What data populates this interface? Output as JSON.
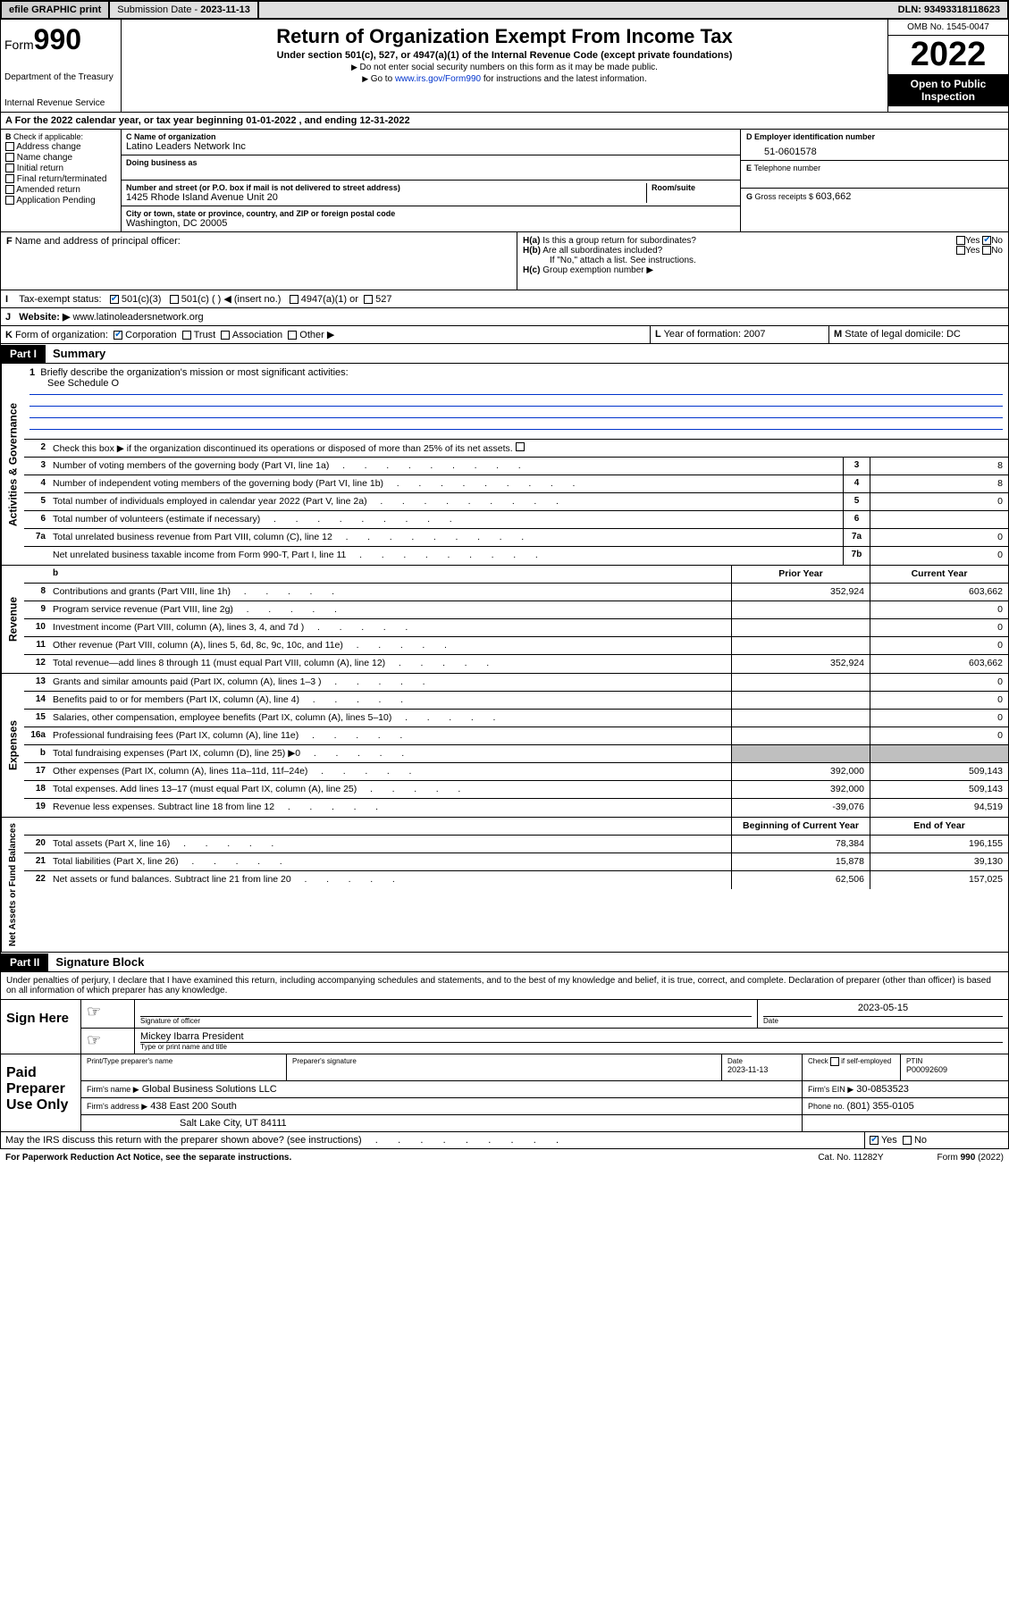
{
  "topbar": {
    "efile": "efile GRAPHIC print",
    "subdate_label": "Submission Date - ",
    "subdate": "2023-11-13",
    "dln_label": "DLN: ",
    "dln": "93493318118623"
  },
  "header": {
    "form_prefix": "Form",
    "form_num": "990",
    "dept": "Department of the Treasury",
    "irs": "Internal Revenue Service",
    "title": "Return of Organization Exempt From Income Tax",
    "sub1": "Under section 501(c), 527, or 4947(a)(1) of the Internal Revenue Code (except private foundations)",
    "sub2": "Do not enter social security numbers on this form as it may be made public.",
    "sub3_pre": "Go to ",
    "sub3_link": "www.irs.gov/Form990",
    "sub3_post": " for instructions and the latest information.",
    "omb": "OMB No. 1545-0047",
    "year": "2022",
    "open": "Open to Public Inspection"
  },
  "periodA": "For the 2022 calendar year, or tax year beginning 01-01-2022   , and ending 12-31-2022",
  "checkB": {
    "label": "Check if applicable:",
    "items": [
      "Address change",
      "Name change",
      "Initial return",
      "Final return/terminated",
      "Amended return",
      "Application Pending"
    ]
  },
  "nameC": {
    "label": "Name of organization",
    "value": "Latino Leaders Network Inc",
    "dba_label": "Doing business as",
    "addr_label": "Number and street (or P.O. box if mail is not delivered to street address)",
    "addr_room": "Room/suite",
    "addr_value": "1425 Rhode Island Avenue Unit 20",
    "city_label": "City or town, state or province, country, and ZIP or foreign postal code",
    "city_value": "Washington, DC  20005"
  },
  "boxD": {
    "label": "Employer identification number",
    "value": "51-0601578"
  },
  "boxE": {
    "label": "Telephone number",
    "value": ""
  },
  "boxG": {
    "label": "Gross receipts $ ",
    "value": "603,662"
  },
  "boxF": "Name and address of principal officer:",
  "boxH": {
    "a": "Is this a group return for subordinates?",
    "b": "Are all subordinates included?",
    "bnote": "If \"No,\" attach a list. See instructions.",
    "c": "Group exemption number ▶"
  },
  "boxI": {
    "label": "Tax-exempt status:",
    "opt1": "501(c)(3)",
    "opt2": "501(c) (  ) ◀ (insert no.)",
    "opt3": "4947(a)(1) or",
    "opt4": "527"
  },
  "boxJ": {
    "label": "Website: ▶",
    "value": "www.latinoleadersnetwork.org"
  },
  "boxK": {
    "label": "Form of organization:",
    "o1": "Corporation",
    "o2": "Trust",
    "o3": "Association",
    "o4": "Other ▶"
  },
  "boxL": {
    "label": "Year of formation: ",
    "value": "2007"
  },
  "boxM": {
    "label": "State of legal domicile: ",
    "value": "DC"
  },
  "part1": {
    "hdr": "Part I",
    "title": "Summary",
    "q1": "Briefly describe the organization's mission or most significant activities:",
    "q1ans": "See Schedule O",
    "q2": "Check this box ▶        if the organization discontinued its operations or disposed of more than 25% of its net assets.",
    "lines_gov": [
      {
        "n": "3",
        "t": "Number of voting members of the governing body (Part VI, line 1a)",
        "b": "3",
        "v": "8"
      },
      {
        "n": "4",
        "t": "Number of independent voting members of the governing body (Part VI, line 1b)",
        "b": "4",
        "v": "8"
      },
      {
        "n": "5",
        "t": "Total number of individuals employed in calendar year 2022 (Part V, line 2a)",
        "b": "5",
        "v": "0"
      },
      {
        "n": "6",
        "t": "Total number of volunteers (estimate if necessary)",
        "b": "6",
        "v": ""
      },
      {
        "n": "7a",
        "t": "Total unrelated business revenue from Part VIII, column (C), line 12",
        "b": "7a",
        "v": "0"
      },
      {
        "n": "",
        "t": "Net unrelated business taxable income from Form 990-T, Part I, line 11",
        "b": "7b",
        "v": "0"
      }
    ],
    "hdr_prior": "Prior Year",
    "hdr_curr": "Current Year",
    "revenue": [
      {
        "n": "8",
        "t": "Contributions and grants (Part VIII, line 1h)",
        "p": "352,924",
        "c": "603,662"
      },
      {
        "n": "9",
        "t": "Program service revenue (Part VIII, line 2g)",
        "p": "",
        "c": "0"
      },
      {
        "n": "10",
        "t": "Investment income (Part VIII, column (A), lines 3, 4, and 7d )",
        "p": "",
        "c": "0"
      },
      {
        "n": "11",
        "t": "Other revenue (Part VIII, column (A), lines 5, 6d, 8c, 9c, 10c, and 11e)",
        "p": "",
        "c": "0"
      },
      {
        "n": "12",
        "t": "Total revenue—add lines 8 through 11 (must equal Part VIII, column (A), line 12)",
        "p": "352,924",
        "c": "603,662"
      }
    ],
    "expenses": [
      {
        "n": "13",
        "t": "Grants and similar amounts paid (Part IX, column (A), lines 1–3 )",
        "p": "",
        "c": "0"
      },
      {
        "n": "14",
        "t": "Benefits paid to or for members (Part IX, column (A), line 4)",
        "p": "",
        "c": "0"
      },
      {
        "n": "15",
        "t": "Salaries, other compensation, employee benefits (Part IX, column (A), lines 5–10)",
        "p": "",
        "c": "0"
      },
      {
        "n": "16a",
        "t": "Professional fundraising fees (Part IX, column (A), line 11e)",
        "p": "",
        "c": "0"
      },
      {
        "n": "b",
        "t": "Total fundraising expenses (Part IX, column (D), line 25) ▶0",
        "p": "shade",
        "c": "shade"
      },
      {
        "n": "17",
        "t": "Other expenses (Part IX, column (A), lines 11a–11d, 11f–24e)",
        "p": "392,000",
        "c": "509,143"
      },
      {
        "n": "18",
        "t": "Total expenses. Add lines 13–17 (must equal Part IX, column (A), line 25)",
        "p": "392,000",
        "c": "509,143"
      },
      {
        "n": "19",
        "t": "Revenue less expenses. Subtract line 18 from line 12",
        "p": "-39,076",
        "c": "94,519"
      }
    ],
    "hdr_beg": "Beginning of Current Year",
    "hdr_end": "End of Year",
    "netassets": [
      {
        "n": "20",
        "t": "Total assets (Part X, line 16)",
        "p": "78,384",
        "c": "196,155"
      },
      {
        "n": "21",
        "t": "Total liabilities (Part X, line 26)",
        "p": "15,878",
        "c": "39,130"
      },
      {
        "n": "22",
        "t": "Net assets or fund balances. Subtract line 21 from line 20",
        "p": "62,506",
        "c": "157,025"
      }
    ]
  },
  "vert": {
    "gov": "Activities & Governance",
    "rev": "Revenue",
    "exp": "Expenses",
    "net": "Net Assets or Fund Balances"
  },
  "part2": {
    "hdr": "Part II",
    "title": "Signature Block",
    "penalty": "Under penalties of perjury, I declare that I have examined this return, including accompanying schedules and statements, and to the best of my knowledge and belief, it is true, correct, and complete. Declaration of preparer (other than officer) is based on all information of which preparer has any knowledge."
  },
  "sign": {
    "here": "Sign Here",
    "sig_label": "Signature of officer",
    "date_label": "Date",
    "date_val": "2023-05-15",
    "name_val": "Mickey Ibarra  President",
    "name_label": "Type or print name and title"
  },
  "paid": {
    "title": "Paid Preparer Use Only",
    "h1": "Print/Type preparer's name",
    "h2": "Preparer's signature",
    "h3": "Date",
    "h3v": "2023-11-13",
    "h4": "Check        if self-employed",
    "h5": "PTIN",
    "h5v": "P00092609",
    "firm_label": "Firm's name    ▶",
    "firm_val": "Global Business Solutions LLC",
    "ein_label": "Firm's EIN ▶",
    "ein_val": "30-0853523",
    "addr_label": "Firm's address ▶",
    "addr_val": "438 East 200 South",
    "addr_val2": "Salt Lake City, UT  84111",
    "phone_label": "Phone no. ",
    "phone_val": "(801) 355-0105"
  },
  "discuss": "May the IRS discuss this return with the preparer shown above? (see instructions)",
  "footer": {
    "left": "For Paperwork Reduction Act Notice, see the separate instructions.",
    "mid": "Cat. No. 11282Y",
    "right_pre": "Form ",
    "right_b": "990",
    "right_post": " (2022)"
  }
}
